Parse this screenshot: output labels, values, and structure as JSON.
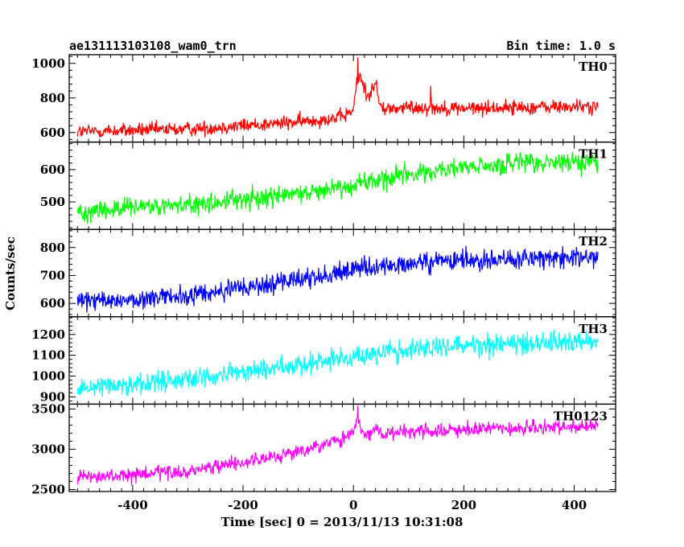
{
  "header": {
    "file_label": "ae131113103108_wam0_trn",
    "bin_time_label": "Bin time: 1.0 s"
  },
  "chart_data": {
    "type": "line",
    "title": "ae131113103108_wam0_trn",
    "subtitle": "Bin time: 1.0 s",
    "xlabel": "Time [sec] 0 = 2013/11/13 10:31:08",
    "ylabel": "Counts/sec",
    "xlim": [
      -515,
      475
    ],
    "x_start": -500,
    "x_end": 443,
    "x_step": 1,
    "x_ticks": [
      -400,
      -200,
      0,
      200,
      400
    ],
    "grid": false,
    "series": [
      {
        "name": "TH0",
        "color": "#ff0000",
        "ylim": [
          545,
          1050
        ],
        "y_ticks": [
          600,
          800,
          1000
        ],
        "trend": [
          [
            -500,
            605
          ],
          [
            -300,
            620
          ],
          [
            -100,
            660
          ],
          [
            -20,
            690
          ],
          [
            0,
            730
          ],
          [
            5,
            870
          ],
          [
            12,
            930
          ],
          [
            25,
            810
          ],
          [
            40,
            880
          ],
          [
            48,
            750
          ],
          [
            60,
            735
          ],
          [
            100,
            745
          ],
          [
            200,
            740
          ],
          [
            300,
            745
          ],
          [
            443,
            750
          ]
        ],
        "noise_sd": 26,
        "events": [
          {
            "x": 8,
            "value": 1035
          },
          {
            "x": 42,
            "value": 905
          },
          {
            "x": 140,
            "value": 870
          }
        ]
      },
      {
        "name": "TH1",
        "color": "#00ff00",
        "ylim": [
          415,
          685
        ],
        "y_ticks": [
          500,
          600
        ],
        "trend": [
          [
            -500,
            470
          ],
          [
            -300,
            490
          ],
          [
            -100,
            525
          ],
          [
            0,
            555
          ],
          [
            100,
            585
          ],
          [
            200,
            605
          ],
          [
            300,
            618
          ],
          [
            443,
            625
          ]
        ],
        "noise_sd": 20
      },
      {
        "name": "TH2",
        "color": "#0000ff",
        "ylim": [
          552,
          865
        ],
        "y_ticks": [
          600,
          700,
          800
        ],
        "trend": [
          [
            -500,
            605
          ],
          [
            -300,
            625
          ],
          [
            -100,
            685
          ],
          [
            0,
            720
          ],
          [
            100,
            740
          ],
          [
            200,
            755
          ],
          [
            300,
            760
          ],
          [
            443,
            765
          ]
        ],
        "noise_sd": 23
      },
      {
        "name": "TH3",
        "color": "#00ffff",
        "ylim": [
          865,
          1285
        ],
        "y_ticks": [
          900,
          1000,
          1100,
          1200
        ],
        "trend": [
          [
            -500,
            945
          ],
          [
            -300,
            985
          ],
          [
            -100,
            1055
          ],
          [
            0,
            1095
          ],
          [
            100,
            1125
          ],
          [
            200,
            1150
          ],
          [
            300,
            1160
          ],
          [
            443,
            1170
          ]
        ],
        "noise_sd": 32
      },
      {
        "name": "TH0123",
        "color": "#ff00ff",
        "ylim": [
          2475,
          3560
        ],
        "y_ticks": [
          2500,
          3000,
          3500
        ],
        "trend": [
          [
            -500,
            2640
          ],
          [
            -300,
            2720
          ],
          [
            -100,
            2960
          ],
          [
            -20,
            3120
          ],
          [
            0,
            3200
          ],
          [
            5,
            3350
          ],
          [
            12,
            3300
          ],
          [
            25,
            3130
          ],
          [
            40,
            3250
          ],
          [
            60,
            3200
          ],
          [
            100,
            3210
          ],
          [
            200,
            3240
          ],
          [
            300,
            3260
          ],
          [
            443,
            3280
          ]
        ],
        "noise_sd": 55,
        "events": [
          {
            "x": 8,
            "value": 3540
          }
        ]
      }
    ]
  }
}
